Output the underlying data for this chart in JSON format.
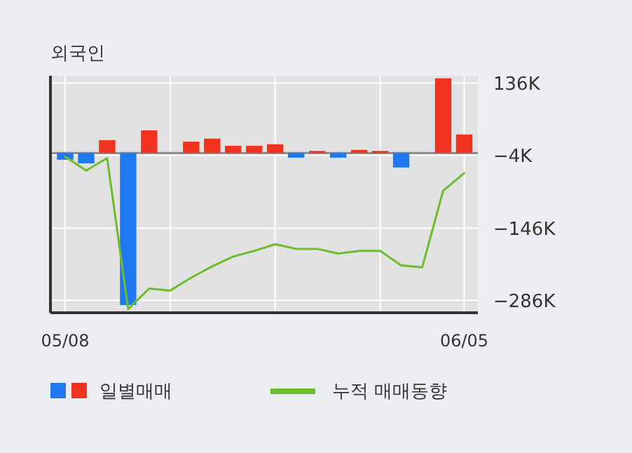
{
  "chart_data": {
    "type": "bar",
    "title": "외국인",
    "categories": [
      "05/08",
      null,
      null,
      null,
      null,
      null,
      null,
      null,
      null,
      null,
      null,
      null,
      null,
      null,
      null,
      null,
      null,
      null,
      null,
      "06/05"
    ],
    "series": [
      {
        "name": "일별매매",
        "colors": [
          "#1e78f0",
          "#1e78f0",
          "#f0321e",
          "#1e78f0",
          "#f0321e",
          "#f0321e",
          "#f0321e",
          "#f0321e",
          "#f0321e",
          "#f0321e",
          "#f0321e",
          "#1e78f0",
          "#f0321e",
          "#1e78f0",
          "#f0321e",
          "#f0321e",
          "#1e78f0",
          "#f0321e",
          "#f0321e",
          "#f0321e"
        ],
        "values": [
          -13,
          -20,
          25,
          -295,
          44,
          0,
          22,
          28,
          14,
          14,
          17,
          -9,
          4,
          -9,
          6,
          4,
          -28,
          0,
          145,
          36
        ]
      },
      {
        "name": "누적 매매동향",
        "type": "line",
        "color": "#6cbd2a",
        "values": [
          -7,
          -34,
          -10,
          -303,
          -263,
          -267,
          -242,
          -220,
          -201,
          -190,
          -177,
          -186,
          -186,
          -195,
          -190,
          -190,
          -218,
          -222,
          -73,
          -39
        ]
      }
    ],
    "ylim": [
      -310,
      150
    ],
    "yticks": [
      {
        "value": 136,
        "label": "136K"
      },
      {
        "value": -4,
        "label": "−4K"
      },
      {
        "value": -146,
        "label": "−146K"
      },
      {
        "value": -286,
        "label": "−286K"
      }
    ],
    "grid": true,
    "legend": "bottom"
  }
}
